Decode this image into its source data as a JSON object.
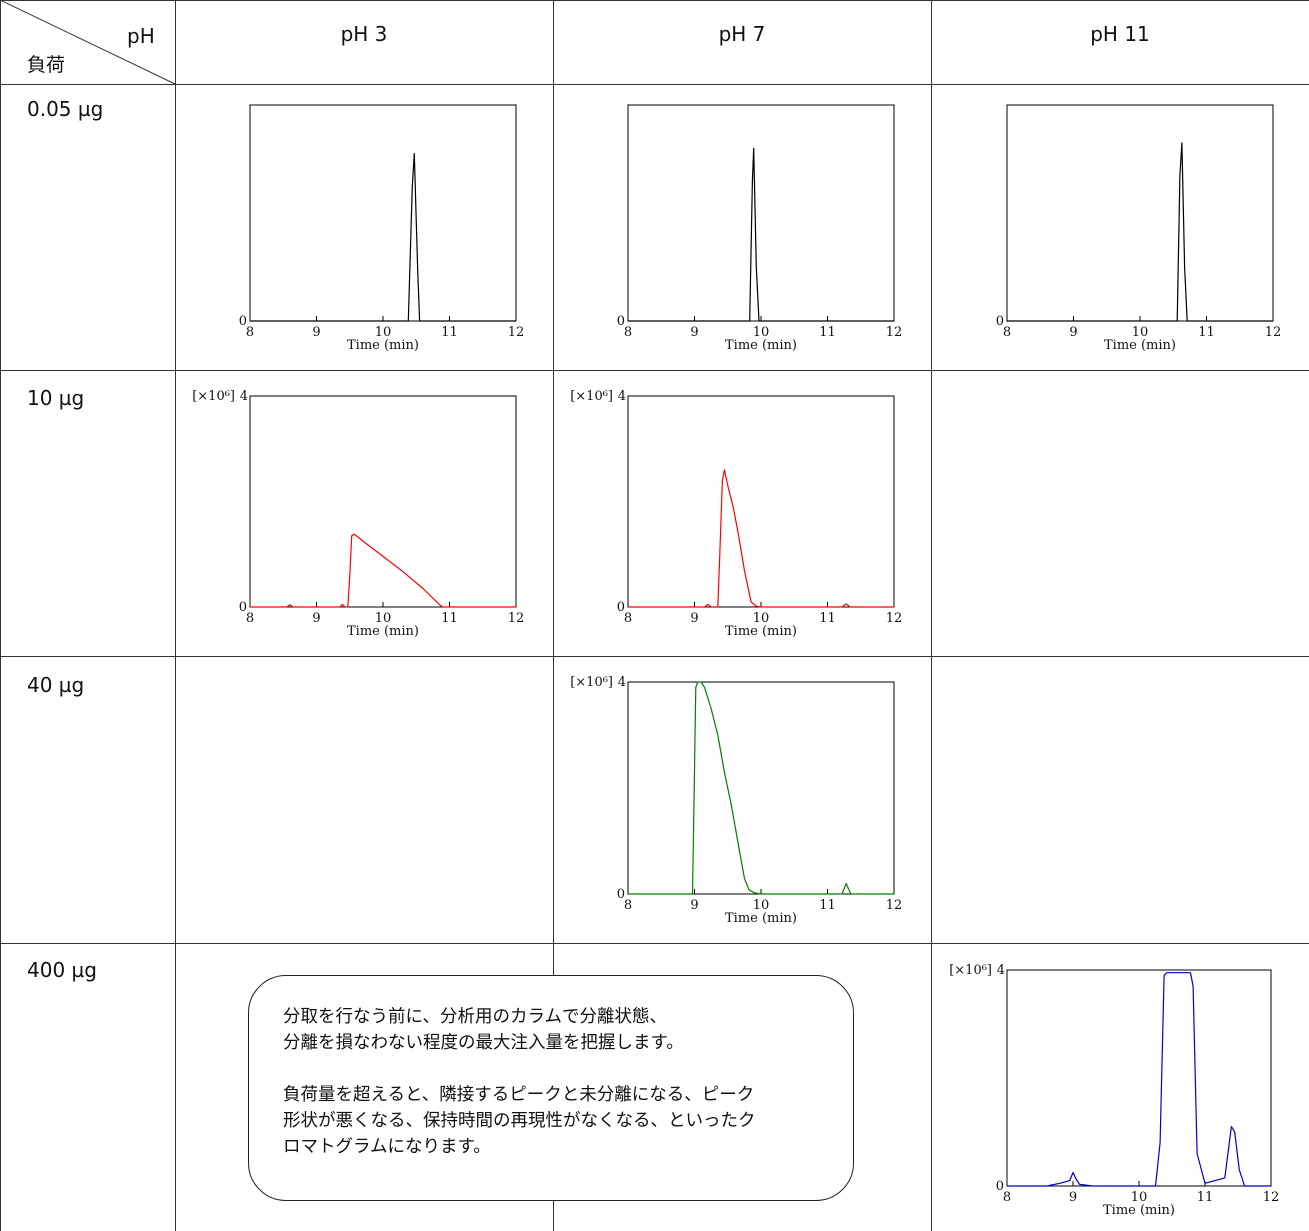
{
  "table": {
    "corner_top": "pH",
    "corner_bottom": "負荷",
    "columns": [
      "pH 3",
      "pH 7",
      "pH 11"
    ],
    "rows": [
      "0.05 µg",
      "10 µg",
      "40 µg",
      "400 µg"
    ]
  },
  "note": {
    "para1": "分取を行なう前に、分析用のカラムで分離状態、\n分離を損なわない程度の最大注入量を把握します。",
    "para2": "負荷量を超えると、隣接するピークと未分離になる、ピーク\n形状が悪くなる、保持時間の再現性がなくなる、といったク\nロマトグラムになります。"
  },
  "chart_data": [
    {
      "type": "line",
      "cell": "0.05 µg / pH 3",
      "xlabel": "Time (min)",
      "xticks": [
        8,
        9,
        10,
        11,
        12
      ],
      "xlim": [
        8,
        12
      ],
      "ylim": [
        0,
        4
      ],
      "yticks": [
        "0"
      ],
      "color": "#000000",
      "series": [
        {
          "x": [
            8,
            10.38,
            10.44,
            10.47,
            10.52,
            10.55,
            12
          ],
          "y": [
            0,
            0,
            2.5,
            3.1,
            1.0,
            0,
            0
          ]
        }
      ]
    },
    {
      "type": "line",
      "cell": "0.05 µg / pH 7",
      "xlabel": "Time (min)",
      "xticks": [
        8,
        9,
        10,
        11,
        12
      ],
      "xlim": [
        8,
        12
      ],
      "ylim": [
        0,
        4
      ],
      "yticks": [
        "0"
      ],
      "color": "#000000",
      "series": [
        {
          "x": [
            8,
            9.83,
            9.87,
            9.89,
            9.93,
            9.97,
            12
          ],
          "y": [
            0,
            0,
            2.6,
            3.2,
            1.0,
            0,
            0
          ]
        }
      ]
    },
    {
      "type": "line",
      "cell": "0.05 µg / pH 11",
      "xlabel": "Time (min)",
      "xticks": [
        8,
        9,
        10,
        11,
        12
      ],
      "xlim": [
        8,
        12
      ],
      "ylim": [
        0,
        4
      ],
      "yticks": [
        "0"
      ],
      "color": "#000000",
      "series": [
        {
          "x": [
            8,
            10.56,
            10.6,
            10.63,
            10.67,
            10.71,
            12
          ],
          "y": [
            0,
            0,
            2.7,
            3.3,
            1.0,
            0,
            0
          ]
        }
      ]
    },
    {
      "type": "line",
      "cell": "10 µg / pH 3",
      "xlabel": "Time (min)",
      "xticks": [
        8,
        9,
        10,
        11,
        12
      ],
      "xlim": [
        8,
        12
      ],
      "ylim": [
        0,
        4
      ],
      "yticks": [
        "0",
        "4"
      ],
      "yunit": "[×10⁶]",
      "color": "#ff0000",
      "series": [
        {
          "x": [
            8,
            8.55,
            8.6,
            8.65,
            9.35,
            9.39,
            9.43,
            9.47,
            9.5,
            9.53,
            9.57,
            9.7,
            10.0,
            10.3,
            10.6,
            10.87,
            10.9,
            12
          ],
          "y": [
            0,
            0,
            0.04,
            0,
            0,
            0.05,
            0,
            0,
            0.6,
            1.35,
            1.38,
            1.25,
            0.96,
            0.67,
            0.35,
            0.02,
            0,
            0
          ]
        }
      ]
    },
    {
      "type": "line",
      "cell": "10 µg / pH 7",
      "xlabel": "Time (min)",
      "xticks": [
        8,
        9,
        10,
        11,
        12
      ],
      "xlim": [
        8,
        12
      ],
      "ylim": [
        0,
        4
      ],
      "yticks": [
        "0",
        "4"
      ],
      "yunit": "[×10⁶]",
      "color": "#ff0000",
      "series": [
        {
          "x": [
            8,
            9.15,
            9.2,
            9.25,
            9.35,
            9.38,
            9.42,
            9.45,
            9.5,
            9.58,
            9.65,
            9.75,
            9.85,
            9.92,
            10.0,
            11.22,
            11.28,
            11.34,
            12
          ],
          "y": [
            0,
            0,
            0.05,
            0,
            0,
            1.0,
            2.4,
            2.6,
            2.3,
            1.9,
            1.45,
            0.7,
            0.1,
            0.02,
            0,
            0,
            0.06,
            0,
            0
          ]
        }
      ]
    },
    {
      "type": "line",
      "cell": "40 µg / pH 7",
      "xlabel": "Time (min)",
      "xticks": [
        8,
        9,
        10,
        11,
        12
      ],
      "xlim": [
        8,
        12
      ],
      "ylim": [
        0,
        4
      ],
      "yticks": [
        "0",
        "4"
      ],
      "yunit": "[×10⁶]",
      "color": "#008000",
      "series": [
        {
          "x": [
            8,
            8.97,
            8.99,
            9.02,
            9.05,
            9.1,
            9.15,
            9.25,
            9.35,
            9.45,
            9.55,
            9.65,
            9.75,
            9.82,
            9.9,
            10.0,
            11.22,
            11.28,
            11.35,
            12
          ],
          "y": [
            0,
            0,
            1.5,
            3.9,
            4.0,
            4.0,
            3.9,
            3.5,
            3.0,
            2.3,
            1.7,
            1.0,
            0.3,
            0.08,
            0.02,
            0,
            0,
            0.2,
            0,
            0
          ]
        }
      ]
    },
    {
      "type": "line",
      "cell": "400 µg / pH 11",
      "xlabel": "Time (min)",
      "xticks": [
        8,
        9,
        10,
        11,
        12
      ],
      "xlim": [
        8,
        12
      ],
      "ylim": [
        0,
        4
      ],
      "yticks": [
        "0",
        "4"
      ],
      "yunit": "[×10⁶]",
      "color": "#0000cc",
      "series": [
        {
          "x": [
            8,
            8.6,
            8.8,
            8.95,
            9.0,
            9.05,
            9.1,
            9.3,
            10.25,
            10.32,
            10.38,
            10.42,
            10.78,
            10.82,
            10.88,
            11.0,
            11.3,
            11.4,
            11.45,
            11.52,
            11.6,
            12
          ],
          "y": [
            0,
            0,
            0.05,
            0.1,
            0.25,
            0.12,
            0.03,
            0,
            0,
            0.8,
            3.9,
            3.95,
            3.95,
            3.7,
            0.6,
            0.05,
            0.15,
            1.1,
            1.0,
            0.3,
            0,
            0
          ]
        }
      ]
    }
  ]
}
